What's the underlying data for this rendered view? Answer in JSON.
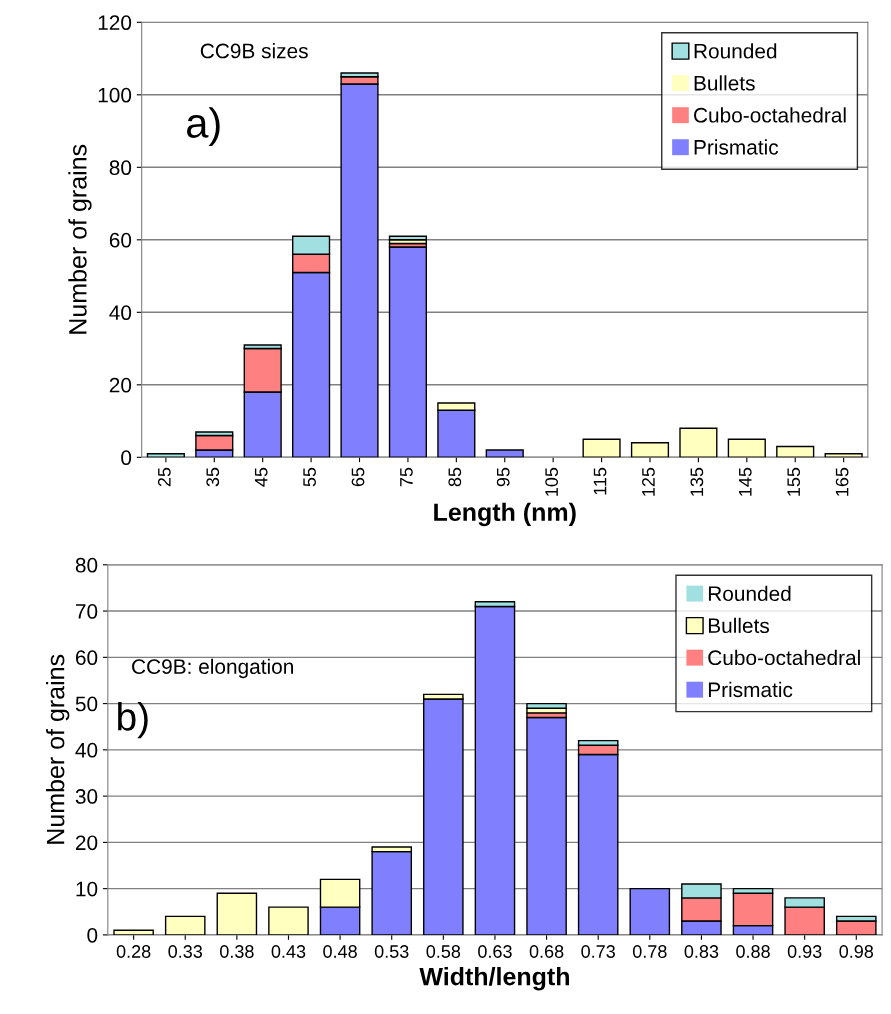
{
  "chart_data": [
    {
      "type": "bar",
      "stacked": true,
      "categories": [
        "25",
        "35",
        "45",
        "55",
        "65",
        "75",
        "85",
        "95",
        "105",
        "115",
        "125",
        "135",
        "145",
        "155",
        "165"
      ],
      "xlabel": "Length (nm)",
      "ylabel": "Number of grains",
      "ylim": [
        0,
        120
      ],
      "yticks": [
        0,
        20,
        40,
        60,
        80,
        100,
        120
      ],
      "grid": "y",
      "legend": "top right",
      "annotations": [
        "CC9B sizes",
        "a)"
      ],
      "series": [
        {
          "name": "Prismatic",
          "color": "#8080ff",
          "values": [
            0,
            2,
            18,
            51,
            103,
            58,
            13,
            2,
            0,
            0,
            0,
            0,
            0,
            0,
            0
          ]
        },
        {
          "name": "Cubo-octahedral",
          "color": "#ff8080",
          "values": [
            0,
            4,
            12,
            5,
            2,
            1,
            0,
            0,
            0,
            0,
            0,
            0,
            0,
            0,
            0
          ]
        },
        {
          "name": "Bullets",
          "color": "#ffffc0",
          "values": [
            0,
            0,
            0,
            0,
            0,
            1,
            2,
            0,
            0,
            5,
            4,
            8,
            5,
            3,
            1
          ]
        },
        {
          "name": "Rounded",
          "color": "#a0e0e0",
          "values": [
            1,
            1,
            1,
            5,
            1,
            1,
            0,
            0,
            0,
            0,
            0,
            0,
            0,
            0,
            0
          ]
        }
      ]
    },
    {
      "type": "bar",
      "stacked": true,
      "categories": [
        "0.28",
        "0.33",
        "0.38",
        "0.43",
        "0.48",
        "0.53",
        "0.58",
        "0.63",
        "0.68",
        "0.73",
        "0.78",
        "0.83",
        "0.88",
        "0.93",
        "0.98"
      ],
      "xlabel": "Width/length",
      "ylabel": "Number of grains",
      "ylim": [
        0,
        80
      ],
      "yticks": [
        0,
        10,
        20,
        30,
        40,
        50,
        60,
        70,
        80
      ],
      "grid": "y",
      "legend": "top right",
      "annotations": [
        "CC9B: elongation",
        "b)"
      ],
      "series": [
        {
          "name": "Prismatic",
          "color": "#8080ff",
          "values": [
            0,
            0,
            0,
            0,
            6,
            18,
            51,
            71,
            47,
            39,
            10,
            3,
            2,
            0,
            0
          ]
        },
        {
          "name": "Cubo-octahedral",
          "color": "#ff8080",
          "values": [
            0,
            0,
            0,
            0,
            0,
            0,
            0,
            0,
            1,
            2,
            0,
            5,
            7,
            6,
            3
          ]
        },
        {
          "name": "Bullets",
          "color": "#ffffc0",
          "values": [
            1,
            4,
            9,
            6,
            6,
            1,
            1,
            0,
            1,
            0,
            0,
            0,
            0,
            0,
            0
          ]
        },
        {
          "name": "Rounded",
          "color": "#a0e0e0",
          "values": [
            0,
            0,
            0,
            0,
            0,
            0,
            0,
            1,
            1,
            1,
            0,
            3,
            1,
            2,
            1
          ]
        }
      ]
    }
  ]
}
